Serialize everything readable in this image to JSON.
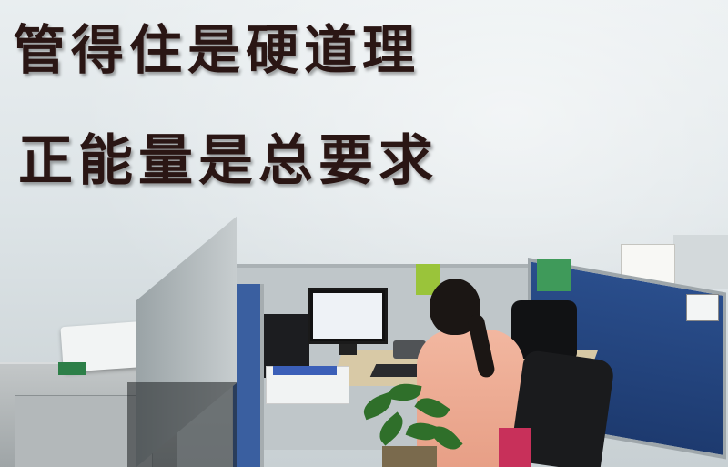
{
  "slogans": {
    "line1": "管得住是硬道理",
    "line2": "正能量是总要求"
  },
  "colors": {
    "wall": "#e4eaec",
    "slogan_text": "#2a1614",
    "cubicle_panel": "#1d3a6f",
    "shirt": "#f2b7a0"
  },
  "icons": {
    "office": "office-photo"
  }
}
